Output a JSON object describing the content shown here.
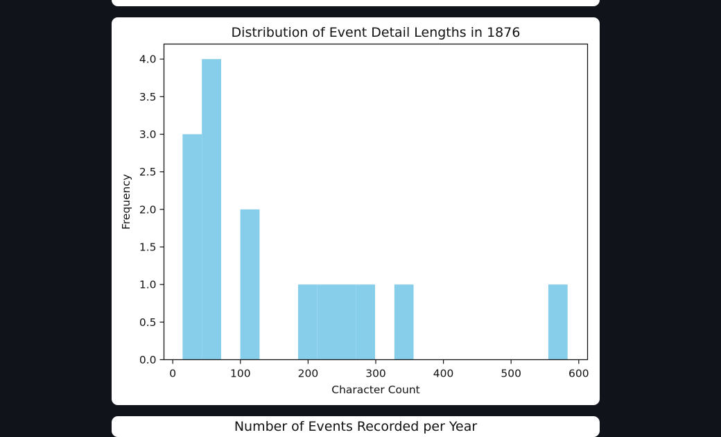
{
  "chart_data": {
    "type": "histogram",
    "title": "Distribution of Event Detail Lengths in 1876",
    "xlabel": "Character Count",
    "ylabel": "Frequency",
    "xlim": [
      -13,
      613
    ],
    "ylim": [
      0,
      4.2
    ],
    "x_ticks": [
      0,
      100,
      200,
      300,
      400,
      500,
      600
    ],
    "y_ticks": [
      0.0,
      0.5,
      1.0,
      1.5,
      2.0,
      2.5,
      3.0,
      3.5,
      4.0
    ],
    "x_tick_labels": [
      "0",
      "100",
      "200",
      "300",
      "400",
      "500",
      "600"
    ],
    "y_tick_labels": [
      "0.0",
      "0.5",
      "1.0",
      "1.5",
      "2.0",
      "2.5",
      "3.0",
      "3.5",
      "4.0"
    ],
    "bar_color": "#87ceeb",
    "bins": [
      {
        "start": 14.5,
        "end": 43.0,
        "count": 3
      },
      {
        "start": 43.0,
        "end": 71.5,
        "count": 4
      },
      {
        "start": 99.8,
        "end": 128.3,
        "count": 2
      },
      {
        "start": 185.2,
        "end": 213.7,
        "count": 1
      },
      {
        "start": 213.7,
        "end": 242.1,
        "count": 1
      },
      {
        "start": 242.1,
        "end": 270.5,
        "count": 1
      },
      {
        "start": 270.5,
        "end": 299.0,
        "count": 1
      },
      {
        "start": 327.5,
        "end": 355.9,
        "count": 1
      },
      {
        "start": 555.0,
        "end": 583.5,
        "count": 1
      }
    ]
  },
  "next_card": {
    "title": "Number of Events Recorded per Year"
  }
}
